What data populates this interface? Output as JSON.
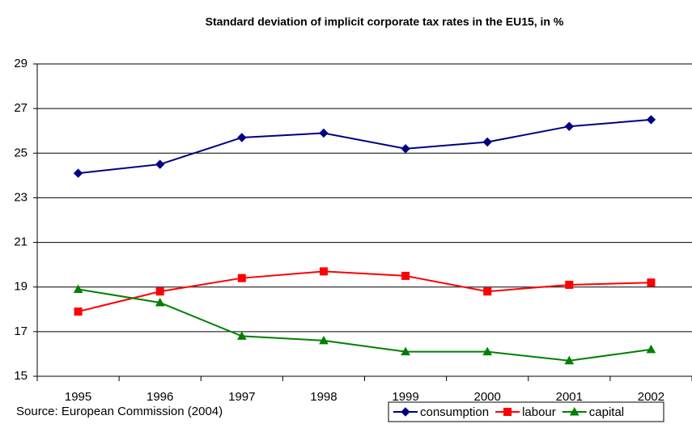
{
  "chart_data": {
    "type": "line",
    "title": "Standard deviation of implicit corporate tax rates in the EU15, in %",
    "source": "Source: European Commission (2004)",
    "categories": [
      "1995",
      "1996",
      "1997",
      "1998",
      "1999",
      "2000",
      "2001",
      "2002"
    ],
    "series": [
      {
        "name": "consumption",
        "color": "#000080",
        "marker": "diamond",
        "values": [
          24.1,
          24.5,
          25.7,
          25.9,
          25.2,
          25.5,
          26.2,
          26.5
        ]
      },
      {
        "name": "labour",
        "color": "#ff0000",
        "marker": "square",
        "values": [
          17.9,
          18.8,
          19.4,
          19.7,
          19.5,
          18.8,
          19.1,
          19.2
        ]
      },
      {
        "name": "capital",
        "color": "#008000",
        "marker": "triangle",
        "values": [
          18.9,
          18.3,
          16.8,
          16.6,
          16.1,
          16.1,
          15.7,
          16.2
        ]
      }
    ],
    "ylim": [
      15,
      29
    ],
    "yticks": [
      15,
      17,
      19,
      21,
      23,
      25,
      27,
      29
    ],
    "grid": true,
    "legend": "bottom-right"
  }
}
